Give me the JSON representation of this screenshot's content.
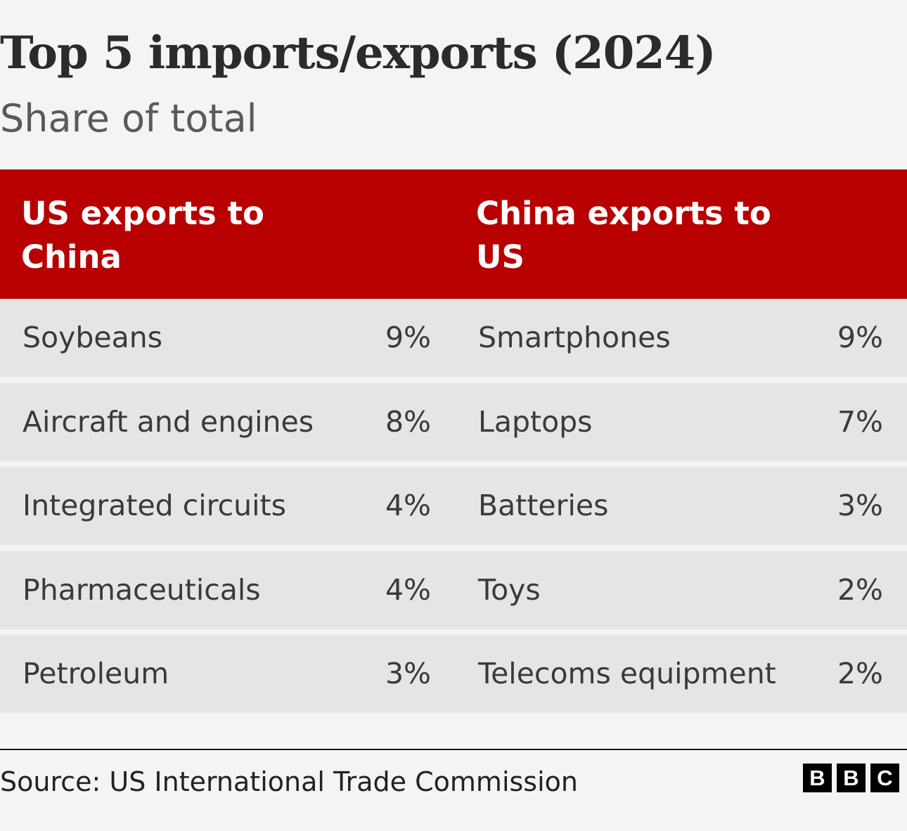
{
  "title": "Top 5 imports/exports (2024)",
  "subtitle": "Share of total",
  "chart_data": {
    "type": "table",
    "title": "Top 5 imports/exports (2024)",
    "subtitle": "Share of total",
    "columns": [
      "US exports to China",
      "China exports to US"
    ],
    "us_exports_to_china": [
      {
        "item": "Soybeans",
        "share": "9%",
        "value": 9
      },
      {
        "item": "Aircraft and engines",
        "share": "8%",
        "value": 8
      },
      {
        "item": "Integrated circuits",
        "share": "4%",
        "value": 4
      },
      {
        "item": "Pharmaceuticals",
        "share": "4%",
        "value": 4
      },
      {
        "item": "Petroleum",
        "share": "3%",
        "value": 3
      }
    ],
    "china_exports_to_us": [
      {
        "item": "Smartphones",
        "share": "9%",
        "value": 9
      },
      {
        "item": "Laptops",
        "share": "7%",
        "value": 7
      },
      {
        "item": "Batteries",
        "share": "3%",
        "value": 3
      },
      {
        "item": "Toys",
        "share": "2%",
        "value": 2
      },
      {
        "item": "Telecoms equipment",
        "share": "2%",
        "value": 2
      }
    ]
  },
  "colors": {
    "header_bg": "#b80000",
    "row_bg": "#e5e5e5",
    "page_bg": "#f4f4f4"
  },
  "footer": {
    "source": "Source: US International Trade Commission",
    "logo_letters": [
      "B",
      "B",
      "C"
    ]
  }
}
